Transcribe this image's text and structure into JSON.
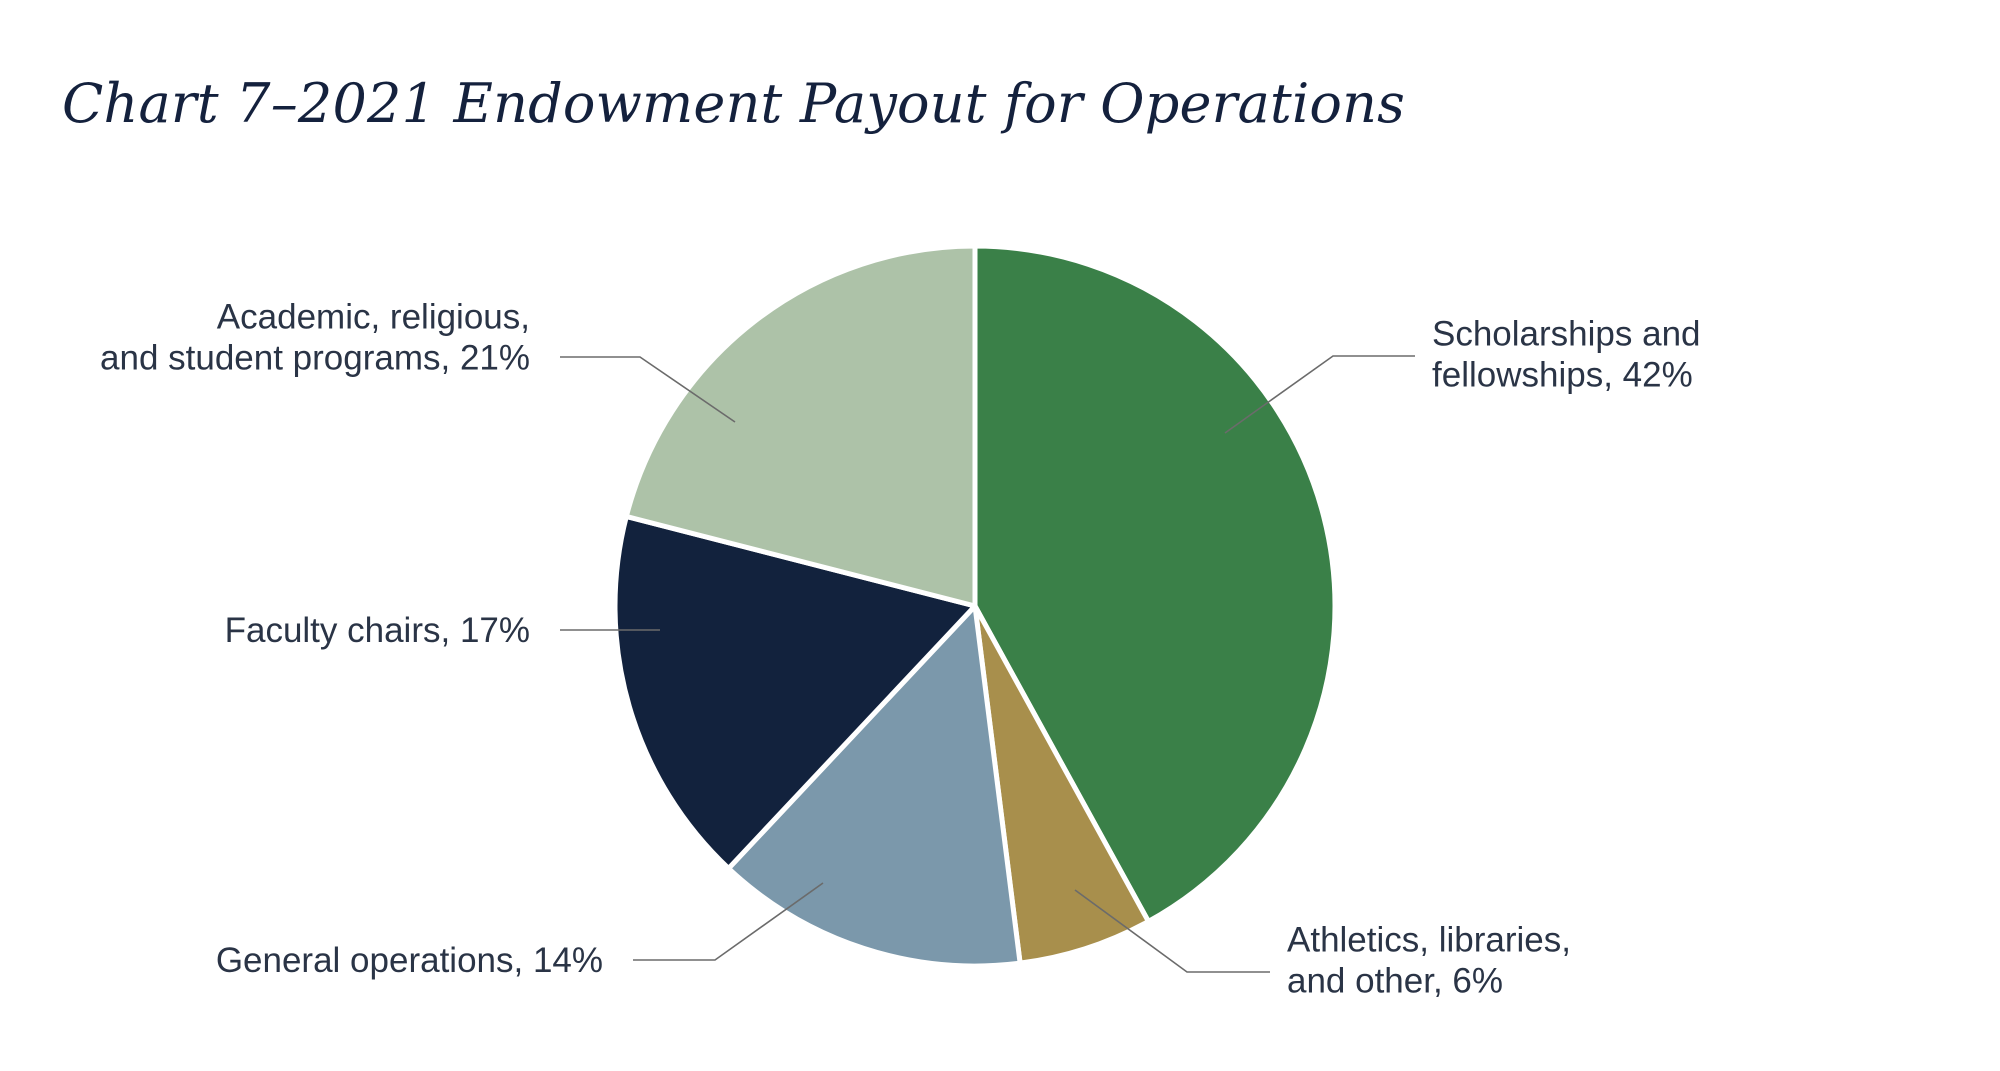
{
  "chart_data": {
    "type": "pie",
    "title": "Chart 7–2021 Endowment Payout for Operations",
    "unit": "%",
    "slices": [
      {
        "label": "Scholarships and fellowships",
        "value": 42,
        "text_lines": [
          "Scholarships and",
          "fellowships, 42%"
        ],
        "color": "#3a8048"
      },
      {
        "label": "Athletics, libraries, and other",
        "value": 6,
        "text_lines": [
          "Athletics, libraries,",
          "and other, 6%"
        ],
        "color": "#a88f4c"
      },
      {
        "label": "General operations",
        "value": 14,
        "text_lines": [
          "General operations, 14%"
        ],
        "color": "#7b98ab"
      },
      {
        "label": "Faculty chairs",
        "value": 17,
        "text_lines": [
          "Faculty chairs, 17%"
        ],
        "color": "#12223d"
      },
      {
        "label": "Academic, religious, and student programs",
        "value": 21,
        "text_lines": [
          "Academic, religious,",
          "and student programs, 21%"
        ],
        "color": "#adc2a8"
      }
    ],
    "start_angle": "12 o'clock",
    "direction": "clockwise",
    "legend": "none",
    "labels": "outside with leader lines"
  }
}
